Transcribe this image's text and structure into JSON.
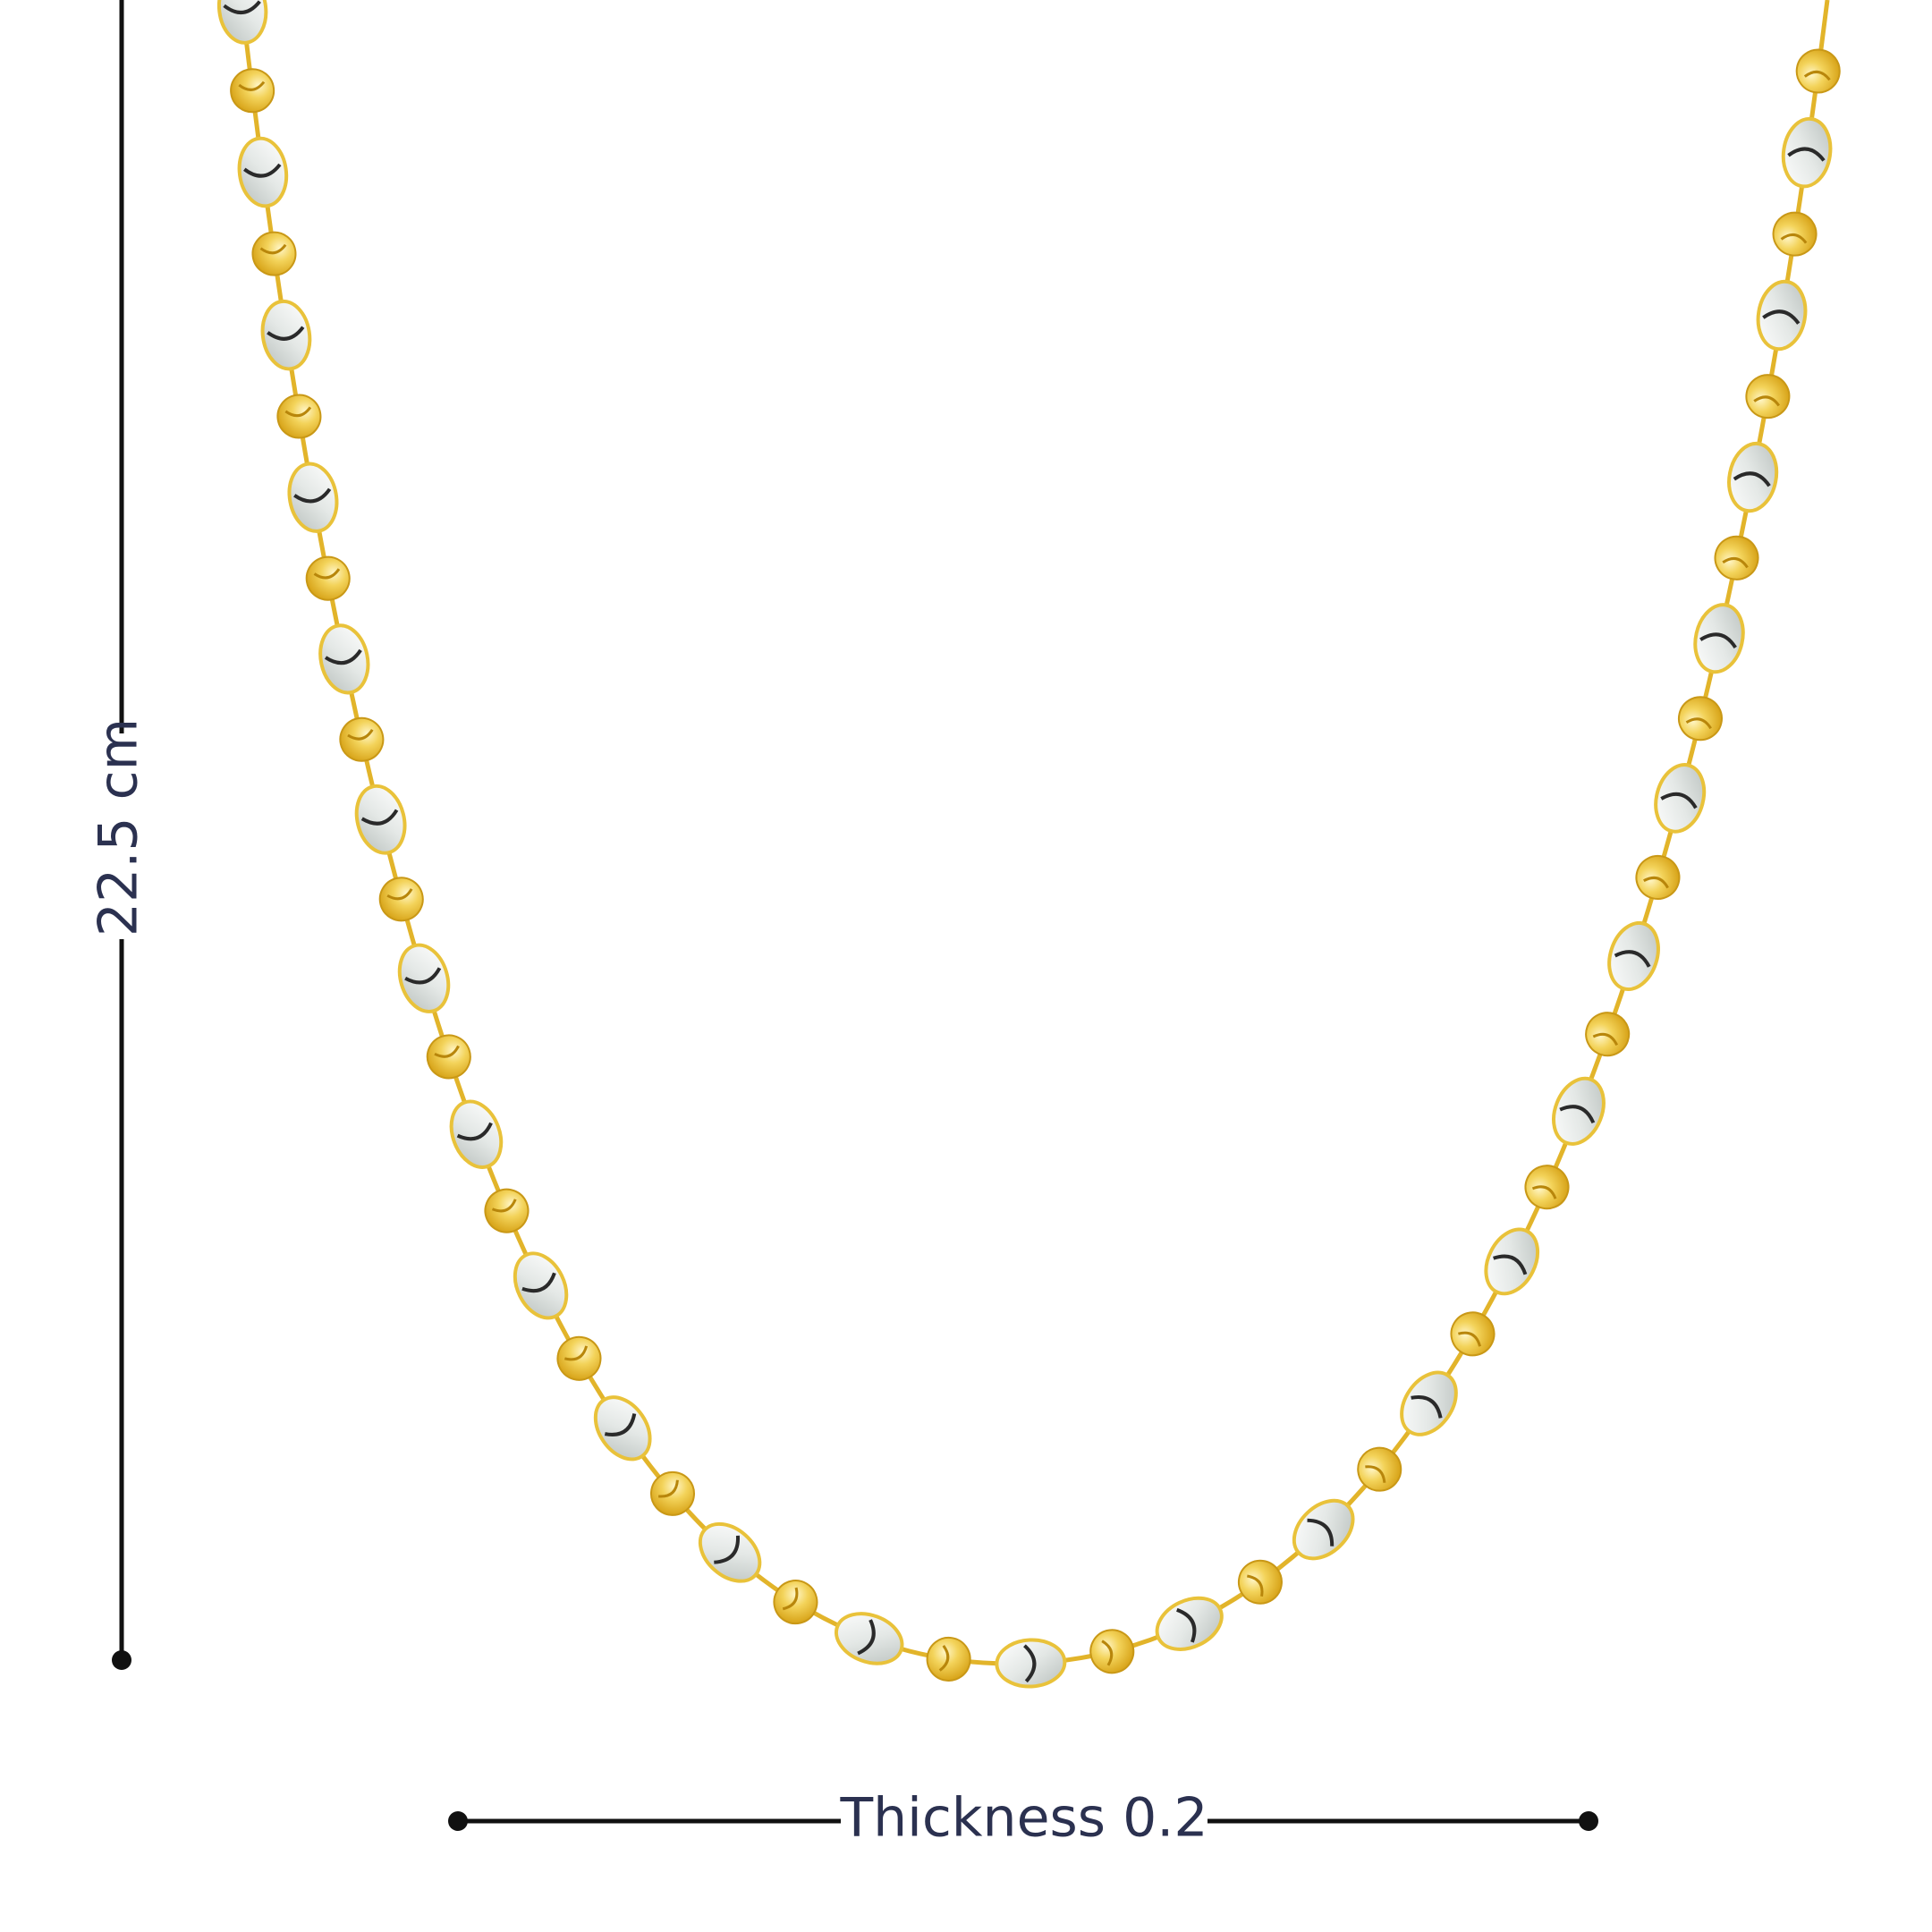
{
  "dimensions": {
    "length": "22.5 cm",
    "thickness": "Thickness 0.2"
  }
}
